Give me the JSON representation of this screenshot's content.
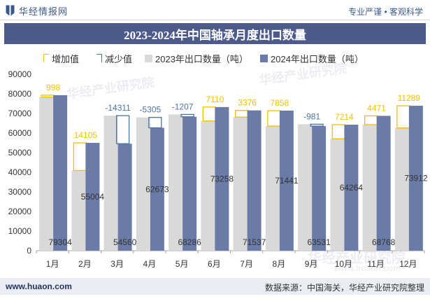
{
  "header": {
    "logo_icon": "huajing-logo-icon",
    "logo_text": "华经情报网",
    "slogan": "专业严谨 • 客观科学"
  },
  "theme": {
    "brand": "#3b5a8c",
    "title_bar": "#4d5b8b"
  },
  "chart_data": {
    "type": "bar",
    "title": "2023-2024年中国轴承月度出口数量",
    "categories": [
      "1月",
      "2月",
      "3月",
      "4月",
      "5月",
      "6月",
      "7月",
      "8月",
      "9月",
      "10月",
      "11月",
      "12月"
    ],
    "series": [
      {
        "name": "2023年出口数量（吨）",
        "values": [
          78306,
          40899,
          68871,
          67978,
          69493,
          66148,
          68161,
          63583,
          64512,
          57050,
          64297,
          62623
        ]
      },
      {
        "name": "2024年出口数量（吨）",
        "values": [
          79304,
          55004,
          54560,
          62673,
          68286,
          73258,
          71537,
          71441,
          63531,
          64264,
          68768,
          73912
        ]
      }
    ],
    "change": {
      "increase_name": "增加值",
      "decrease_name": "减少值",
      "values": [
        998,
        14105,
        -14311,
        -5305,
        -1207,
        7110,
        3376,
        7858,
        -981,
        7214,
        4471,
        11289
      ]
    },
    "ylim": [
      0,
      90000
    ],
    "yticks": [
      0,
      10000,
      20000,
      30000,
      40000,
      50000,
      60000,
      70000,
      80000,
      90000
    ],
    "grid": false,
    "legend_position": "top-left",
    "colors": {
      "increase": "#f2c000",
      "decrease": "#4a73a3",
      "y2023": "#d9d9d9",
      "y2024": "#6b7ba7"
    }
  },
  "watermark": {
    "text": "华经产业研究院",
    "url": "www.huaon.com"
  },
  "footer": {
    "website": "www.huaon.com",
    "source": "数据来源：中国海关，华经产业研究院整理"
  }
}
